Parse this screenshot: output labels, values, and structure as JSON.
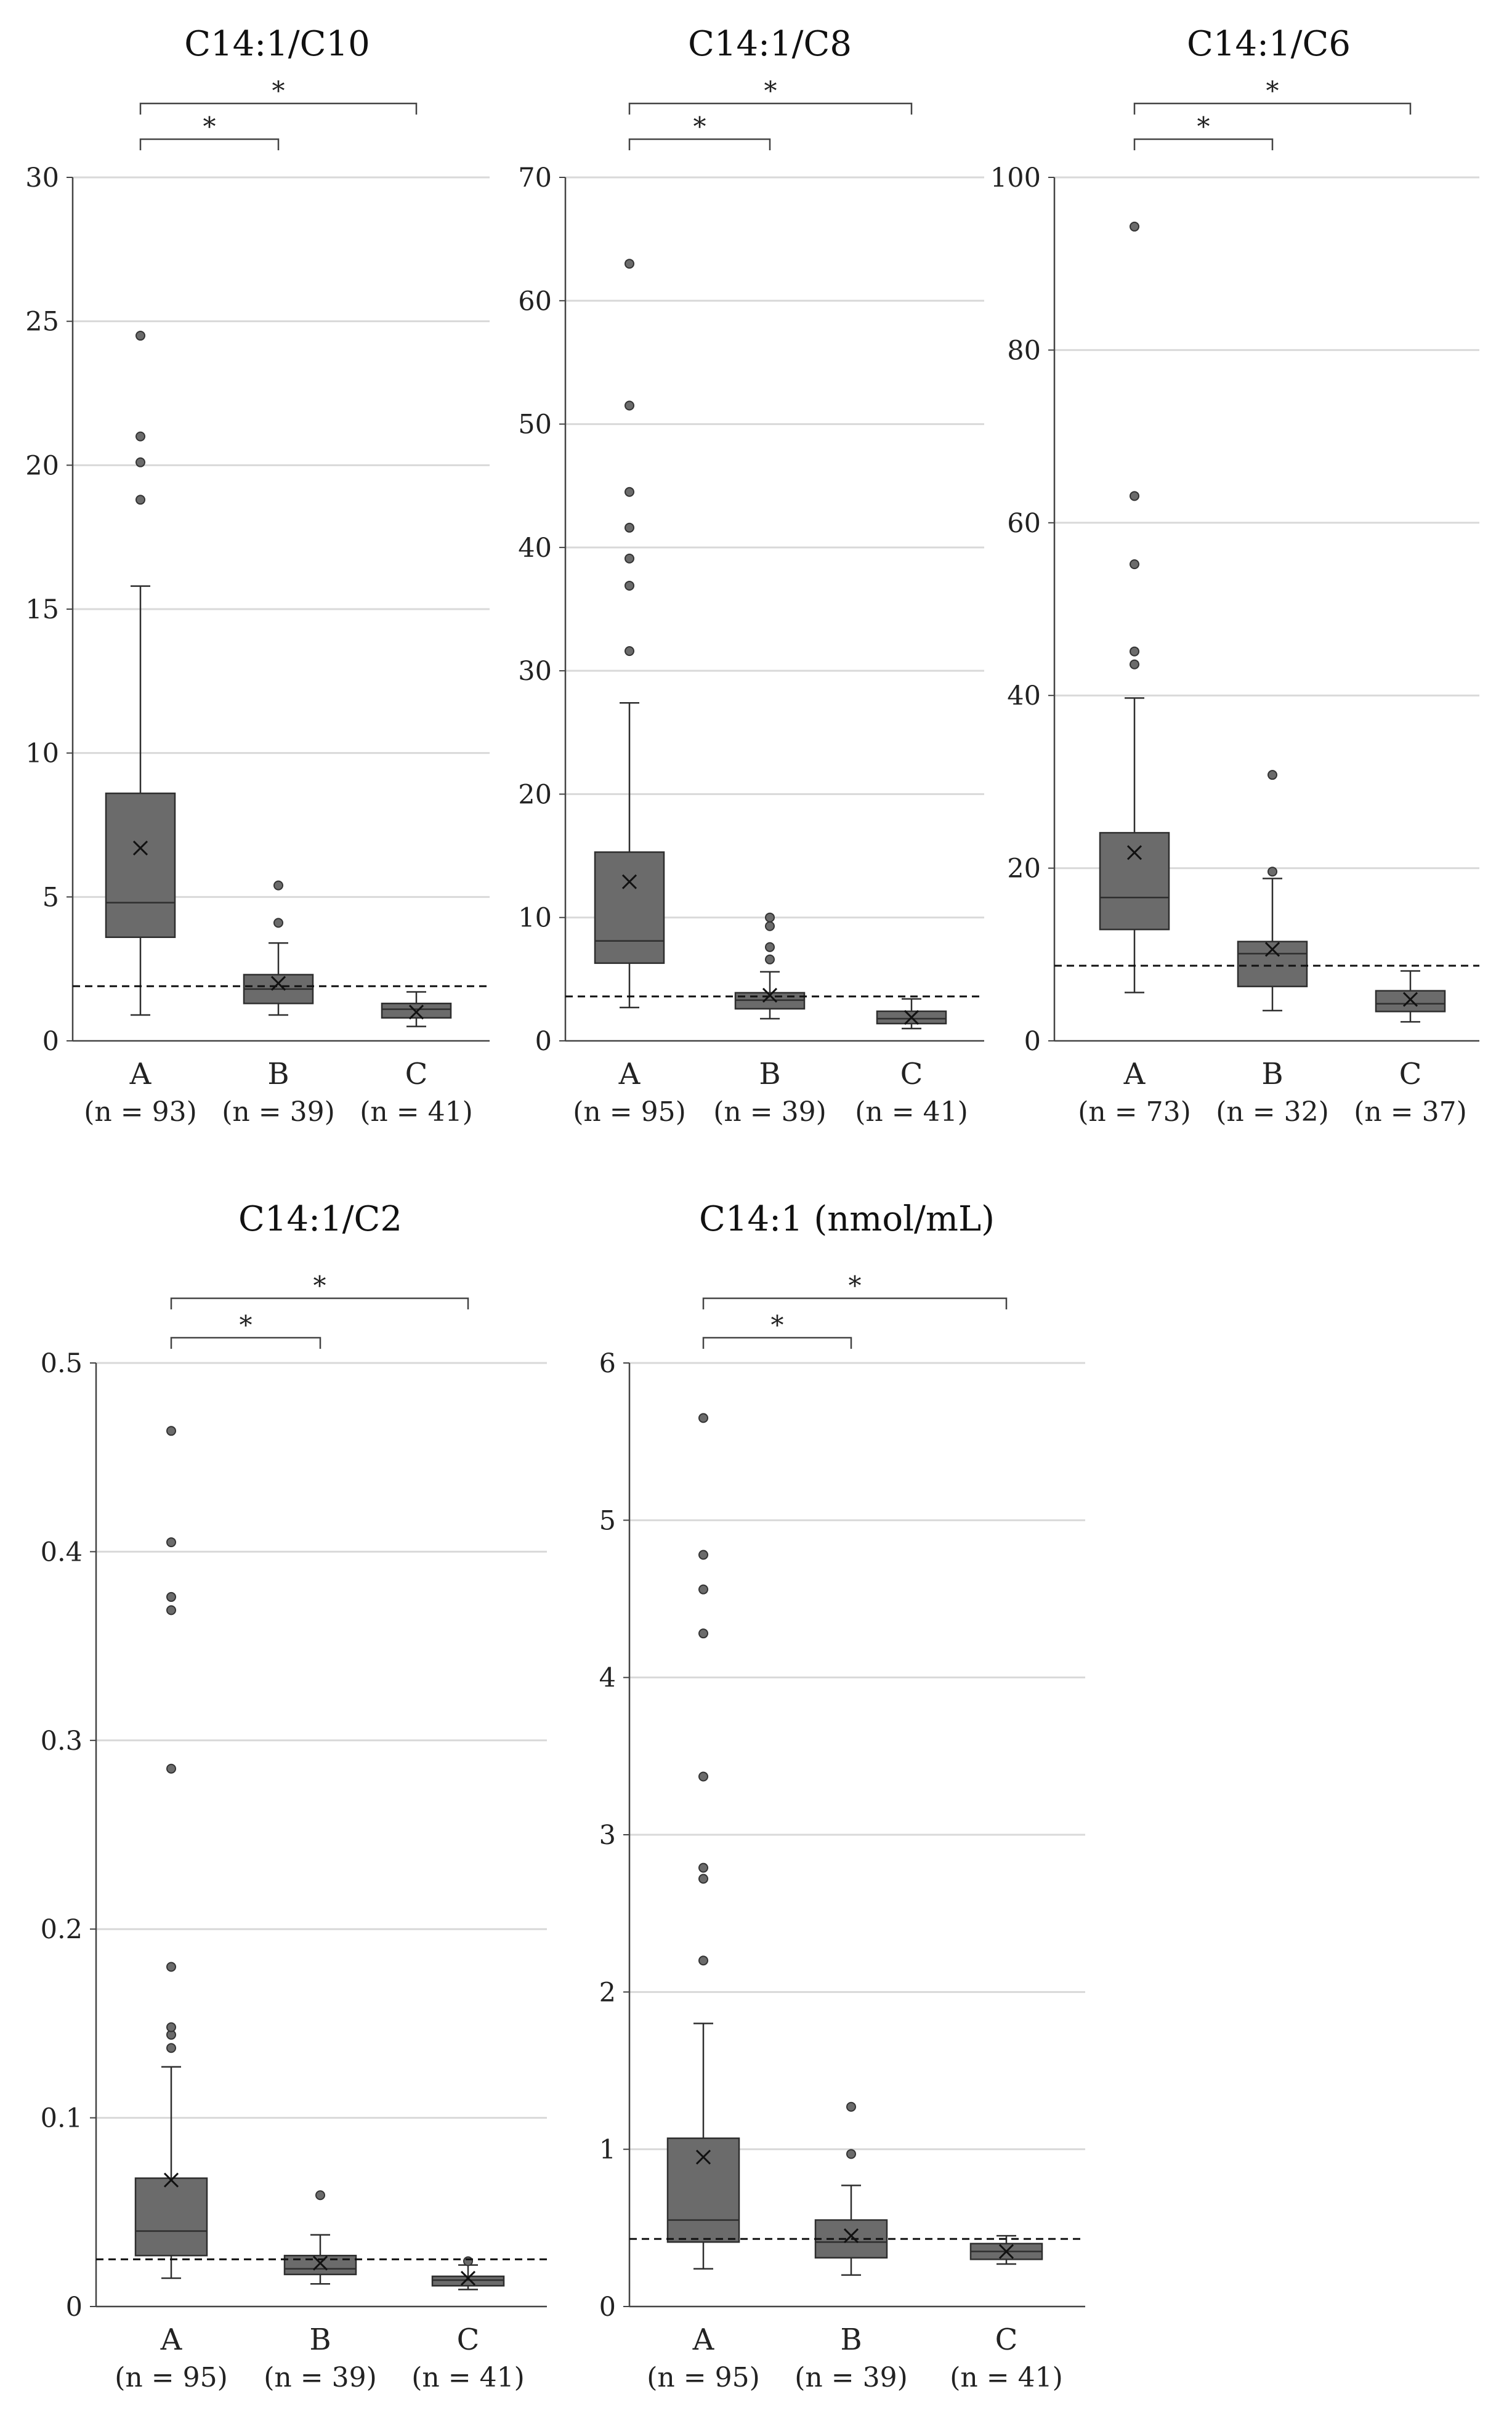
{
  "chart_data": [
    {
      "type": "box",
      "title": "C14:1/C10",
      "ylim": [
        0,
        30
      ],
      "yticks": [
        0,
        5,
        10,
        15,
        20,
        25,
        30
      ],
      "reference_line": 1.9,
      "significance": [
        "*",
        "*"
      ],
      "groups": [
        {
          "category": "A",
          "n_label": "(n = 93)",
          "min": 0.9,
          "q1": 3.6,
          "median": 4.8,
          "q3": 8.6,
          "max": 15.8,
          "mean": 6.7,
          "outliers": [
            18.8,
            20.1,
            21.0,
            24.5
          ]
        },
        {
          "category": "B",
          "n_label": "(n = 39)",
          "min": 0.9,
          "q1": 1.3,
          "median": 1.8,
          "q3": 2.3,
          "max": 3.4,
          "mean": 2.0,
          "outliers": [
            4.1,
            5.4
          ]
        },
        {
          "category": "C",
          "n_label": "(n = 41)",
          "min": 0.5,
          "q1": 0.8,
          "median": 1.1,
          "q3": 1.3,
          "max": 1.7,
          "mean": 1.0,
          "outliers": []
        }
      ]
    },
    {
      "type": "box",
      "title": "C14:1/C8",
      "ylim": [
        0,
        70
      ],
      "yticks": [
        0,
        10,
        20,
        30,
        40,
        50,
        60,
        70
      ],
      "reference_line": 3.6,
      "significance": [
        "*",
        "*"
      ],
      "groups": [
        {
          "category": "A",
          "n_label": "(n = 95)",
          "min": 2.7,
          "q1": 6.3,
          "median": 8.1,
          "q3": 15.3,
          "max": 27.4,
          "mean": 12.9,
          "outliers": [
            31.6,
            36.9,
            39.1,
            41.6,
            44.5,
            51.5,
            63.0
          ]
        },
        {
          "category": "B",
          "n_label": "(n = 39)",
          "min": 1.8,
          "q1": 2.6,
          "median": 3.3,
          "q3": 3.9,
          "max": 5.6,
          "mean": 3.7,
          "outliers": [
            6.6,
            7.6,
            9.3,
            10.0
          ]
        },
        {
          "category": "C",
          "n_label": "(n = 41)",
          "min": 1.0,
          "q1": 1.4,
          "median": 1.8,
          "q3": 2.4,
          "max": 3.4,
          "mean": 1.9,
          "outliers": []
        }
      ]
    },
    {
      "type": "box",
      "title": "C14:1/C6",
      "ylim": [
        0,
        100
      ],
      "yticks": [
        0,
        20,
        40,
        60,
        80,
        100
      ],
      "reference_line": 8.7,
      "significance": [
        "*",
        "*"
      ],
      "groups": [
        {
          "category": "A",
          "n_label": "(n = 73)",
          "min": 5.6,
          "q1": 12.9,
          "median": 16.6,
          "q3": 24.1,
          "max": 39.7,
          "mean": 21.8,
          "outliers": [
            43.6,
            45.1,
            55.2,
            63.1,
            94.3
          ]
        },
        {
          "category": "B",
          "n_label": "(n = 32)",
          "min": 3.5,
          "q1": 6.3,
          "median": 10.1,
          "q3": 11.5,
          "max": 18.8,
          "mean": 10.6,
          "outliers": [
            19.6,
            30.8
          ]
        },
        {
          "category": "C",
          "n_label": "(n = 37)",
          "min": 2.2,
          "q1": 3.4,
          "median": 4.3,
          "q3": 5.8,
          "max": 8.1,
          "mean": 4.8,
          "outliers": []
        }
      ]
    },
    {
      "type": "box",
      "title": "C14:1/C2",
      "ylim": [
        0,
        0.5
      ],
      "yticks": [
        0,
        0.1,
        0.2,
        0.3,
        0.4,
        0.5
      ],
      "reference_line": 0.025,
      "significance": [
        "*",
        "*"
      ],
      "groups": [
        {
          "category": "A",
          "n_label": "(n = 95)",
          "min": 0.015,
          "q1": 0.027,
          "median": 0.04,
          "q3": 0.068,
          "max": 0.127,
          "mean": 0.067,
          "outliers": [
            0.137,
            0.144,
            0.148,
            0.18,
            0.285,
            0.369,
            0.376,
            0.405,
            0.464
          ]
        },
        {
          "category": "B",
          "n_label": "(n = 39)",
          "min": 0.012,
          "q1": 0.017,
          "median": 0.02,
          "q3": 0.027,
          "max": 0.038,
          "mean": 0.023,
          "outliers": [
            0.059
          ]
        },
        {
          "category": "C",
          "n_label": "(n = 41)",
          "min": 0.009,
          "q1": 0.011,
          "median": 0.014,
          "q3": 0.016,
          "max": 0.022,
          "mean": 0.015,
          "outliers": [
            0.024
          ]
        }
      ]
    },
    {
      "type": "box",
      "title": "C14:1 (nmol/mL)",
      "ylim": [
        0,
        6
      ],
      "yticks": [
        0,
        1,
        2,
        3,
        4,
        5,
        6
      ],
      "reference_line": 0.43,
      "significance": [
        "*",
        "*"
      ],
      "groups": [
        {
          "category": "A",
          "n_label": "(n = 95)",
          "min": 0.24,
          "q1": 0.41,
          "median": 0.55,
          "q3": 1.07,
          "max": 1.8,
          "mean": 0.95,
          "outliers": [
            2.2,
            2.72,
            2.79,
            3.37,
            4.28,
            4.56,
            4.78,
            5.65
          ]
        },
        {
          "category": "B",
          "n_label": "(n = 39)",
          "min": 0.2,
          "q1": 0.31,
          "median": 0.41,
          "q3": 0.55,
          "max": 0.77,
          "mean": 0.45,
          "outliers": [
            0.97,
            1.27
          ]
        },
        {
          "category": "C",
          "n_label": "(n = 41)",
          "min": 0.27,
          "q1": 0.3,
          "median": 0.35,
          "q3": 0.4,
          "max": 0.45,
          "mean": 0.35,
          "outliers": []
        }
      ]
    }
  ],
  "colors": {
    "box_fill": "#6b6b6b",
    "box_edge": "#2e2e2e",
    "grid": "#d9d9d9",
    "axis": "#444444",
    "reference_line": "#111111",
    "text": "#222222"
  }
}
